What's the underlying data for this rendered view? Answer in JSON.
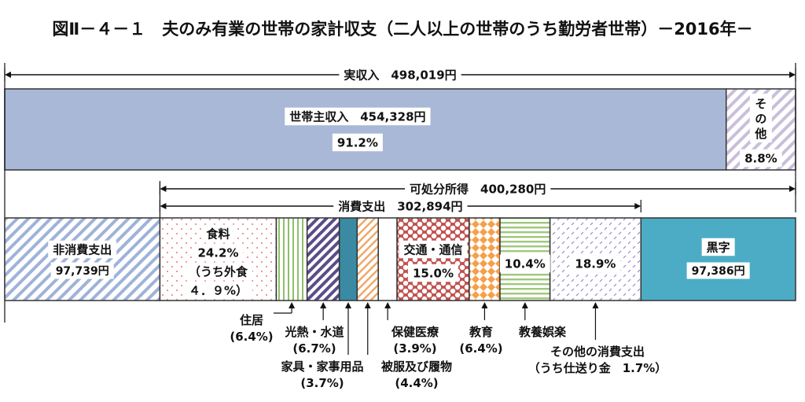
{
  "chart_data": {
    "type": "bar",
    "title": "図Ⅱ－４－１　夫のみ有業の世帯の家計収支（二人以上の世帯のうち勤労者世帯）－2016年－",
    "income": {
      "label": "実収入　498,019円",
      "total": 498019,
      "segments": [
        {
          "name": "世帯主収入",
          "label": "世帯主収入　454,328円",
          "value": 454328,
          "pct_label": "91.2%",
          "pct": 91.2,
          "color": "#a9b8d6"
        },
        {
          "name": "その他",
          "label": "そ\nの\n他",
          "value": 43691,
          "pct_label": "8.8%",
          "pct": 8.8,
          "color": "#c0b3d3"
        }
      ]
    },
    "disposable": {
      "label": "可処分所得　400,280円",
      "value": 400280
    },
    "consumption": {
      "label": "消費支出　302,894円",
      "value": 302894
    },
    "expenditure": {
      "segments": [
        {
          "name": "非消費支出",
          "label": "非消費支出",
          "value_label": "97,739円",
          "value": 97739,
          "pattern": "diag-blue"
        },
        {
          "name": "食料",
          "label": "食料",
          "pct_label": "24.2%",
          "pct": 24.2,
          "sub_label": "（うち外食",
          "sub_label2": "４．９%）",
          "pattern": "dots-red"
        },
        {
          "name": "住居",
          "pct": 6.4,
          "pattern": "vstripe-green"
        },
        {
          "name": "光熱・水道",
          "pct": 6.7,
          "pattern": "diag-purple"
        },
        {
          "name": "家具・家事用品",
          "pct": 3.7,
          "pattern": "solid-teal"
        },
        {
          "name": "被服及び履物",
          "pct": 4.4,
          "pattern": "diag-orange"
        },
        {
          "name": "保健医療",
          "pct": 3.9,
          "pattern": "blank"
        },
        {
          "name": "交通・通信",
          "label": "交通・通信",
          "pct_label": "15.0%",
          "pct": 15.0,
          "pattern": "scale-red"
        },
        {
          "name": "教育",
          "pct": 6.4,
          "pattern": "diamond-orange"
        },
        {
          "name": "教養娯楽",
          "pct_label": "10.4%",
          "pct": 10.4,
          "pattern": "hstripe-green"
        },
        {
          "name": "その他の消費支出",
          "pct_label": "18.9%",
          "pct": 18.9,
          "pattern": "dash-purple"
        },
        {
          "name": "黒字",
          "label": "黒字",
          "value_label": "97,386円",
          "value": 97386,
          "pattern": "solid-cyan"
        }
      ]
    },
    "callouts": [
      {
        "name": "住居",
        "lines": [
          "住居",
          "(6.4%)"
        ]
      },
      {
        "name": "光熱・水道",
        "lines": [
          "光熱・水道",
          "(6.7%)"
        ]
      },
      {
        "name": "家具・家事用品",
        "lines": [
          "家具・家事用品",
          "(3.7%)"
        ]
      },
      {
        "name": "被服及び履物",
        "lines": [
          "被服及び履物",
          "(4.4%)"
        ]
      },
      {
        "name": "保健医療",
        "lines": [
          "保健医療",
          "(3.9%)"
        ]
      },
      {
        "name": "教育",
        "lines": [
          "教育",
          "(6.4%)"
        ]
      },
      {
        "name": "教養娯楽",
        "lines": [
          "教養娯楽"
        ]
      },
      {
        "name": "その他の消費支出",
        "lines": [
          "その他の消費支出",
          "（うち仕送り金　1.7%）"
        ]
      }
    ]
  }
}
